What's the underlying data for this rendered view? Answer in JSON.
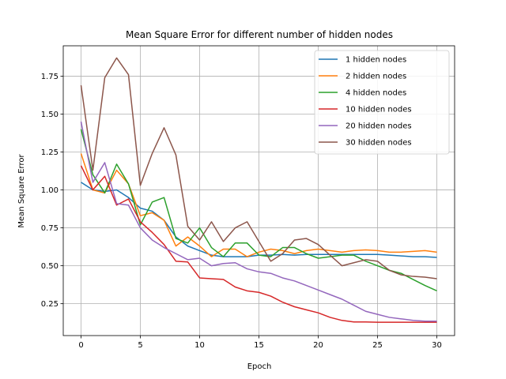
{
  "chart_data": {
    "type": "line",
    "title": "Mean Square Error for different number of hidden nodes",
    "xlabel": "Epoch",
    "ylabel": "Mean Square Error",
    "xlim": [
      -1.5,
      31.5
    ],
    "ylim": [
      0.04,
      1.95
    ],
    "xticks": [
      0,
      5,
      10,
      15,
      20,
      25,
      30
    ],
    "yticks": [
      0.25,
      0.5,
      0.75,
      1.0,
      1.25,
      1.5,
      1.75
    ],
    "ytick_labels": [
      "0.25",
      "0.50",
      "0.75",
      "1.00",
      "1.25",
      "1.50",
      "1.75"
    ],
    "grid": true,
    "legend_position": "top-right",
    "x": [
      0,
      1,
      2,
      3,
      4,
      5,
      6,
      7,
      8,
      9,
      10,
      11,
      12,
      13,
      14,
      15,
      16,
      17,
      18,
      19,
      20,
      21,
      22,
      23,
      24,
      25,
      26,
      27,
      28,
      29,
      30
    ],
    "series": [
      {
        "name": "1 hidden nodes",
        "color": "#1f77b4",
        "values": [
          1.05,
          1.0,
          0.99,
          1.0,
          0.95,
          0.88,
          0.86,
          0.8,
          0.69,
          0.63,
          0.6,
          0.57,
          0.56,
          0.56,
          0.56,
          0.57,
          0.57,
          0.575,
          0.57,
          0.575,
          0.575,
          0.575,
          0.575,
          0.575,
          0.575,
          0.575,
          0.57,
          0.565,
          0.56,
          0.56,
          0.555
        ]
      },
      {
        "name": "2 hidden nodes",
        "color": "#ff7f0e",
        "values": [
          1.24,
          1.0,
          0.98,
          1.13,
          1.04,
          0.83,
          0.85,
          0.8,
          0.63,
          0.69,
          0.63,
          0.56,
          0.61,
          0.61,
          0.56,
          0.59,
          0.61,
          0.6,
          0.58,
          0.6,
          0.61,
          0.6,
          0.59,
          0.6,
          0.605,
          0.6,
          0.59,
          0.59,
          0.595,
          0.6,
          0.59
        ]
      },
      {
        "name": "4 hidden nodes",
        "color": "#2ca02c",
        "values": [
          1.4,
          1.1,
          0.98,
          1.17,
          1.04,
          0.77,
          0.92,
          0.95,
          0.68,
          0.65,
          0.75,
          0.62,
          0.56,
          0.65,
          0.65,
          0.57,
          0.56,
          0.62,
          0.62,
          0.58,
          0.55,
          0.56,
          0.57,
          0.57,
          0.53,
          0.5,
          0.47,
          0.45,
          0.41,
          0.37,
          0.335
        ]
      },
      {
        "name": "10 hidden nodes",
        "color": "#d62728",
        "values": [
          1.16,
          1.0,
          1.09,
          0.9,
          0.94,
          0.79,
          0.72,
          0.64,
          0.53,
          0.525,
          0.42,
          0.415,
          0.41,
          0.36,
          0.335,
          0.325,
          0.3,
          0.26,
          0.23,
          0.21,
          0.19,
          0.16,
          0.14,
          0.13,
          0.13,
          0.128,
          0.128,
          0.128,
          0.128,
          0.128,
          0.128
        ]
      },
      {
        "name": "20 hidden nodes",
        "color": "#9467bd",
        "values": [
          1.45,
          1.05,
          1.18,
          0.91,
          0.9,
          0.75,
          0.67,
          0.62,
          0.58,
          0.54,
          0.55,
          0.5,
          0.515,
          0.52,
          0.48,
          0.46,
          0.45,
          0.42,
          0.4,
          0.37,
          0.34,
          0.31,
          0.28,
          0.24,
          0.2,
          0.18,
          0.16,
          0.15,
          0.14,
          0.135,
          0.135
        ]
      },
      {
        "name": "30 hidden nodes",
        "color": "#8c564b",
        "values": [
          1.69,
          1.13,
          1.74,
          1.87,
          1.76,
          1.03,
          1.24,
          1.41,
          1.23,
          0.76,
          0.67,
          0.79,
          0.66,
          0.75,
          0.79,
          0.66,
          0.53,
          0.58,
          0.67,
          0.68,
          0.64,
          0.57,
          0.5,
          0.52,
          0.54,
          0.53,
          0.47,
          0.44,
          0.43,
          0.425,
          0.415
        ]
      }
    ]
  }
}
